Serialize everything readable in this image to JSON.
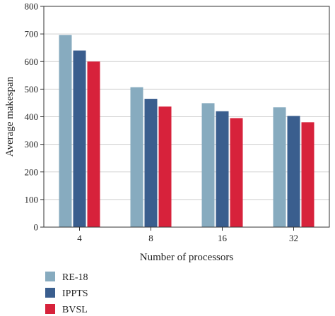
{
  "chart_data": {
    "type": "bar",
    "categories": [
      "4",
      "8",
      "16",
      "32"
    ],
    "series": [
      {
        "name": "RE-18",
        "color": "#87abbf",
        "values": [
          696,
          507,
          449,
          434
        ]
      },
      {
        "name": "IPPTS",
        "color": "#3a5e8e",
        "values": [
          640,
          465,
          420,
          403
        ]
      },
      {
        "name": "BVSL",
        "color": "#d7223b",
        "values": [
          600,
          437,
          395,
          380
        ]
      }
    ],
    "xlabel": "Number of processors",
    "ylabel": "Average makespan",
    "ylim": [
      0,
      800
    ],
    "yticks": [
      0,
      100,
      200,
      300,
      400,
      500,
      600,
      700,
      800
    ],
    "grid": true,
    "legend_position": "bottom-left"
  }
}
